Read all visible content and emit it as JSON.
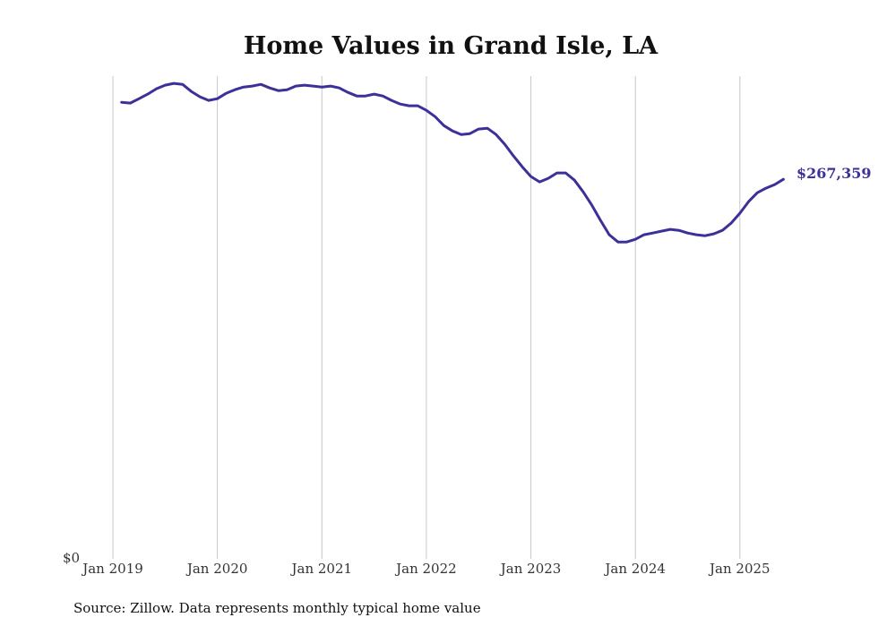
{
  "chart_data": {
    "type": "line",
    "title": "Home Values in Grand Isle, LA",
    "xlabel": "",
    "ylabel": "",
    "source": "Source: Zillow. Data represents monthly typical home value",
    "y_tick_labels": [
      "$0"
    ],
    "x_tick_labels": [
      "Jan 2019",
      "Jan 2020",
      "Jan 2021",
      "Jan 2022",
      "Jan 2023",
      "Jan 2024",
      "Jan 2025"
    ],
    "ylim": [
      0,
      340000
    ],
    "grid": "vertical at each January",
    "start": "Feb 2019",
    "end": "Jun 2025",
    "series": [
      {
        "name": "Typical home value",
        "color": "#3b3199",
        "end_label": "$267,359",
        "values": [
          321600,
          321000,
          324100,
          327300,
          331100,
          333600,
          334900,
          334200,
          329200,
          325400,
          322900,
          324100,
          327900,
          330400,
          332300,
          333000,
          334200,
          331700,
          329800,
          330400,
          333000,
          333600,
          333000,
          332300,
          333000,
          331700,
          328500,
          326000,
          326000,
          327300,
          326000,
          322900,
          320300,
          319100,
          319100,
          315900,
          311500,
          305200,
          301400,
          298900,
          299500,
          302700,
          303300,
          298900,
          292000,
          283800,
          276200,
          269300,
          265500,
          268000,
          271800,
          271800,
          266700,
          258500,
          249100,
          238400,
          228300,
          223200,
          223200,
          225100,
          228300,
          229500,
          230800,
          232100,
          231400,
          229500,
          228300,
          227600,
          228900,
          231400,
          236500,
          243400,
          251600,
          257900,
          261100,
          263600,
          267359
        ]
      }
    ]
  }
}
